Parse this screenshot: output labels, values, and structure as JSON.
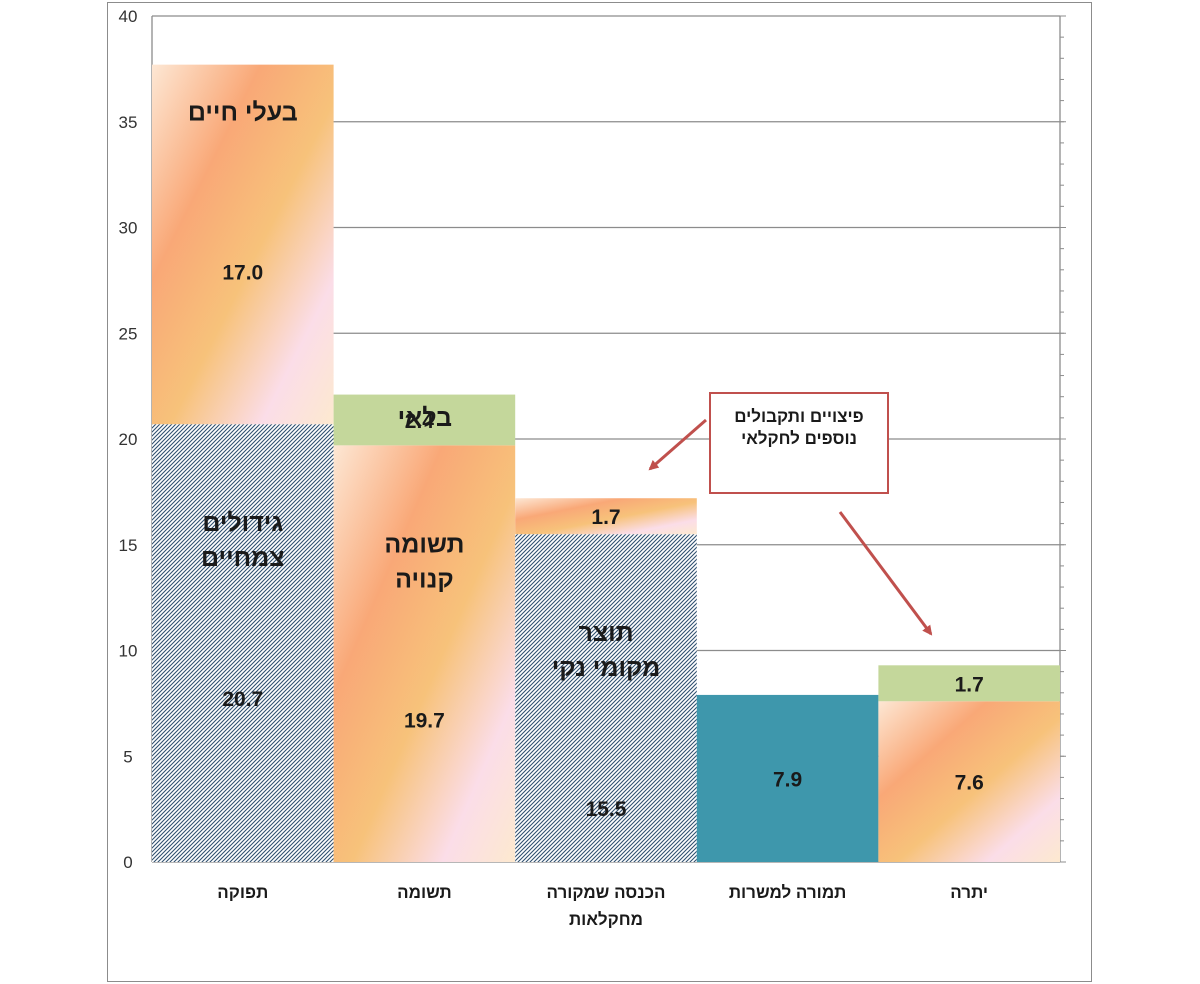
{
  "chart_data": {
    "type": "bar",
    "stacked": true,
    "ylim": [
      0,
      40
    ],
    "yticks": [
      "0",
      "5",
      "10",
      "15",
      "20",
      "25",
      "30",
      "35",
      "40"
    ],
    "grid": true,
    "categories": [
      [
        "תפוקה"
      ],
      [
        "תשומה"
      ],
      [
        "הכנסה שמקורה",
        "מחקלאות"
      ],
      [
        "תמורה למשרות"
      ],
      [
        "יתרה"
      ]
    ],
    "bars": [
      {
        "segments": [
          {
            "value": 20.7,
            "value_label": "20.7",
            "name": [
              "גידולים",
              "צמחיים"
            ],
            "style": "hatch"
          },
          {
            "value": 17.0,
            "value_label": "17.0",
            "name": [
              "בעלי חיים"
            ],
            "style": "gradient"
          }
        ]
      },
      {
        "segments": [
          {
            "value": 19.7,
            "value_label": "19.7",
            "name": [
              "תשומה",
              "קנויה"
            ],
            "style": "gradient"
          },
          {
            "value": 2.4,
            "value_label": "2.4",
            "name": [
              "בלאי"
            ],
            "style": "green"
          }
        ]
      },
      {
        "segments": [
          {
            "value": 15.5,
            "value_label": "15.5",
            "name": [
              "תוצר",
              "מקומי נקי"
            ],
            "style": "hatch"
          },
          {
            "value": 1.7,
            "value_label": "1.7",
            "name": [],
            "style": "gradient"
          }
        ]
      },
      {
        "segments": [
          {
            "value": 7.9,
            "value_label": "7.9",
            "name": [],
            "style": "teal"
          }
        ]
      },
      {
        "segments": [
          {
            "value": 7.6,
            "value_label": "7.6",
            "name": [],
            "style": "gradient"
          },
          {
            "value": 1.7,
            "value_label": "1.7",
            "name": [],
            "style": "green"
          }
        ]
      }
    ],
    "annotation": [
      "פיצויים ותקבולים",
      "נוספים לחקלאי"
    ]
  },
  "colors": {
    "grid": "#8c8c8c",
    "hatch_bg": "#ffffff",
    "hatch_line": "#2f4f6f",
    "green": "#c4d79b",
    "teal": "#3e97ac",
    "gradient": [
      "#fde0c5",
      "#f9a877",
      "#f7c27a",
      "#fbdde8"
    ],
    "callout_border": "#c0504d",
    "arrow": "#c0504d"
  }
}
